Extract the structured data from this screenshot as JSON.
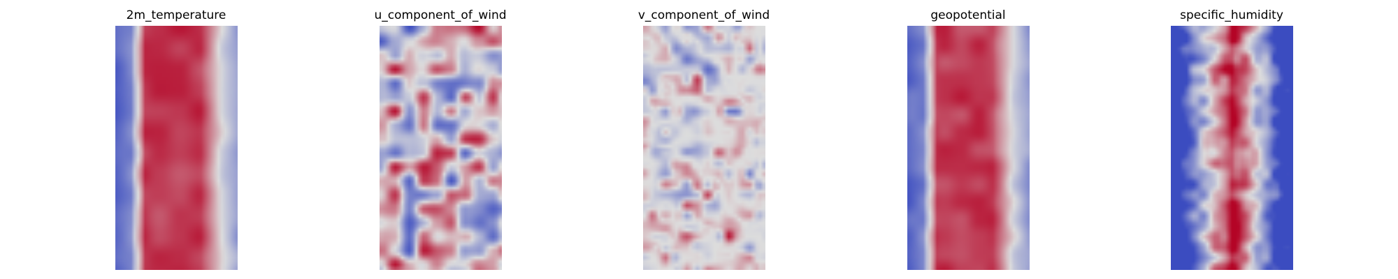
{
  "colormap": {
    "name": "coolwarm",
    "low_color": "#3b4cc0",
    "mid_color": "#dddddd",
    "high_color": "#b40426"
  },
  "panels": [
    {
      "title": "2m_temperature",
      "pattern": "bands"
    },
    {
      "title": "u_component_of_wind",
      "pattern": "streaks"
    },
    {
      "title": "v_component_of_wind",
      "pattern": "blobs"
    },
    {
      "title": "geopotential",
      "pattern": "bands"
    },
    {
      "title": "specific_humidity",
      "pattern": "core"
    }
  ]
}
